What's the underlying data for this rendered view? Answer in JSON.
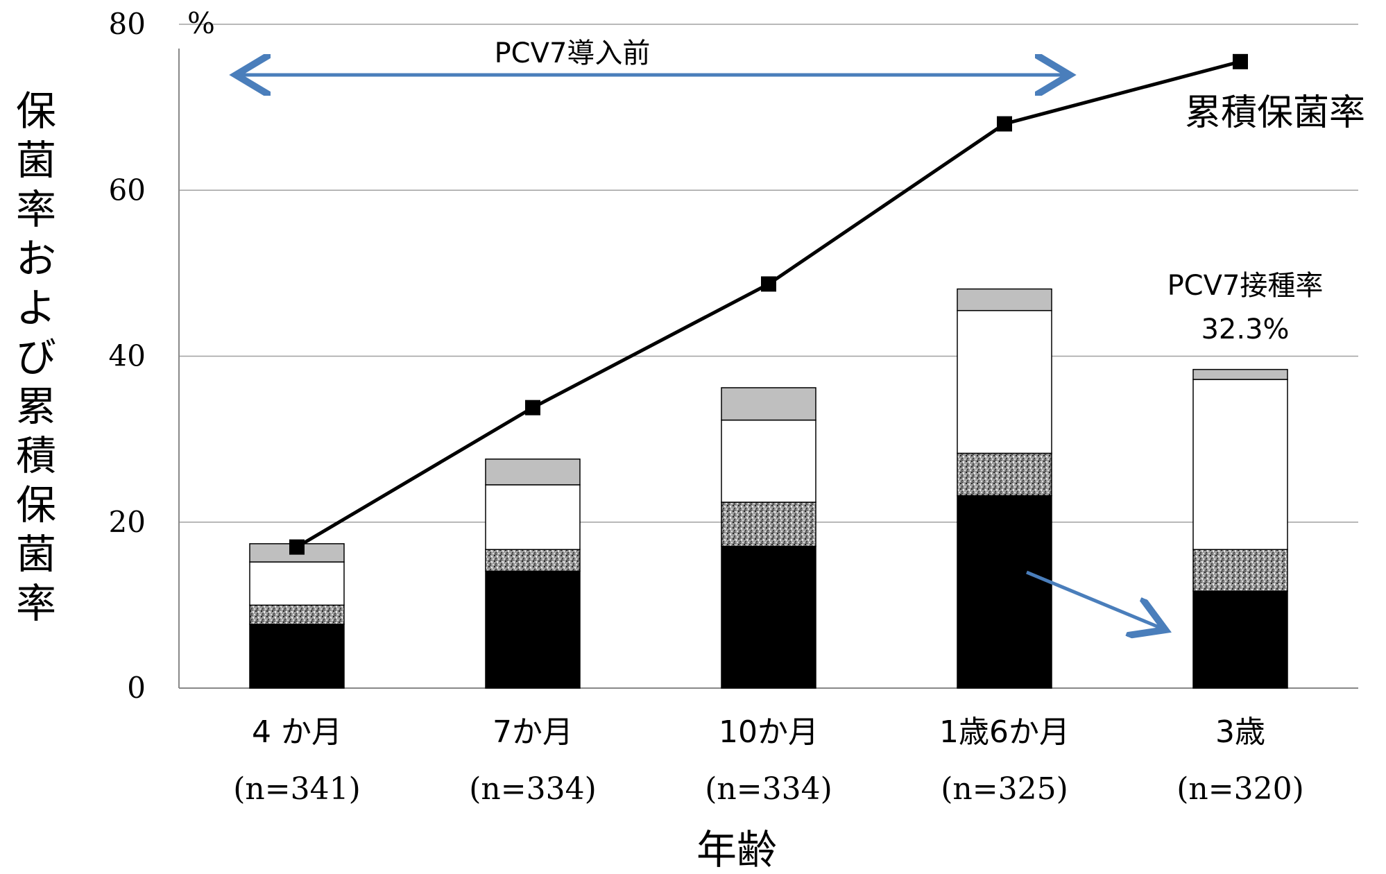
{
  "chart_data": {
    "type": "bar",
    "stacked": true,
    "xlabel": "年齢",
    "ylabel": "保菌率および累積保菌率",
    "y_unit": "%",
    "ylim": [
      0,
      80
    ],
    "yticks": [
      0,
      20,
      40,
      60,
      80
    ],
    "grid": true,
    "categories": [
      "4 か月",
      "7か月",
      "10か月",
      "1歳6か月",
      "3歳"
    ],
    "category_n": [
      "(n=341)",
      "(n=334)",
      "(n=334)",
      "(n=325)",
      "(n=320)"
    ],
    "stack_segments": [
      {
        "fill": "#000000",
        "values": [
          7.7,
          14.1,
          17.1,
          23.2,
          11.7
        ]
      },
      {
        "fill": "#9a9a9a",
        "pattern": "speckle",
        "values": [
          2.3,
          2.6,
          5.3,
          5.1,
          5.0
        ]
      },
      {
        "fill": "#ffffff",
        "values": [
          5.2,
          7.8,
          9.9,
          17.2,
          20.5
        ]
      },
      {
        "fill": "#bfbfbf",
        "values": [
          2.2,
          3.1,
          3.9,
          2.6,
          1.2
        ]
      }
    ],
    "line_series": {
      "name": "累積保菌率",
      "color": "#000000",
      "values": [
        17.0,
        33.8,
        48.7,
        68.0,
        75.5
      ]
    },
    "annotations": {
      "pre_pcv7_label": "PCV7導入前",
      "pcv7_rate_label": "PCV7接種率",
      "pcv7_rate_value": "32.3%",
      "arrow_color": "#4a7ebb"
    }
  }
}
